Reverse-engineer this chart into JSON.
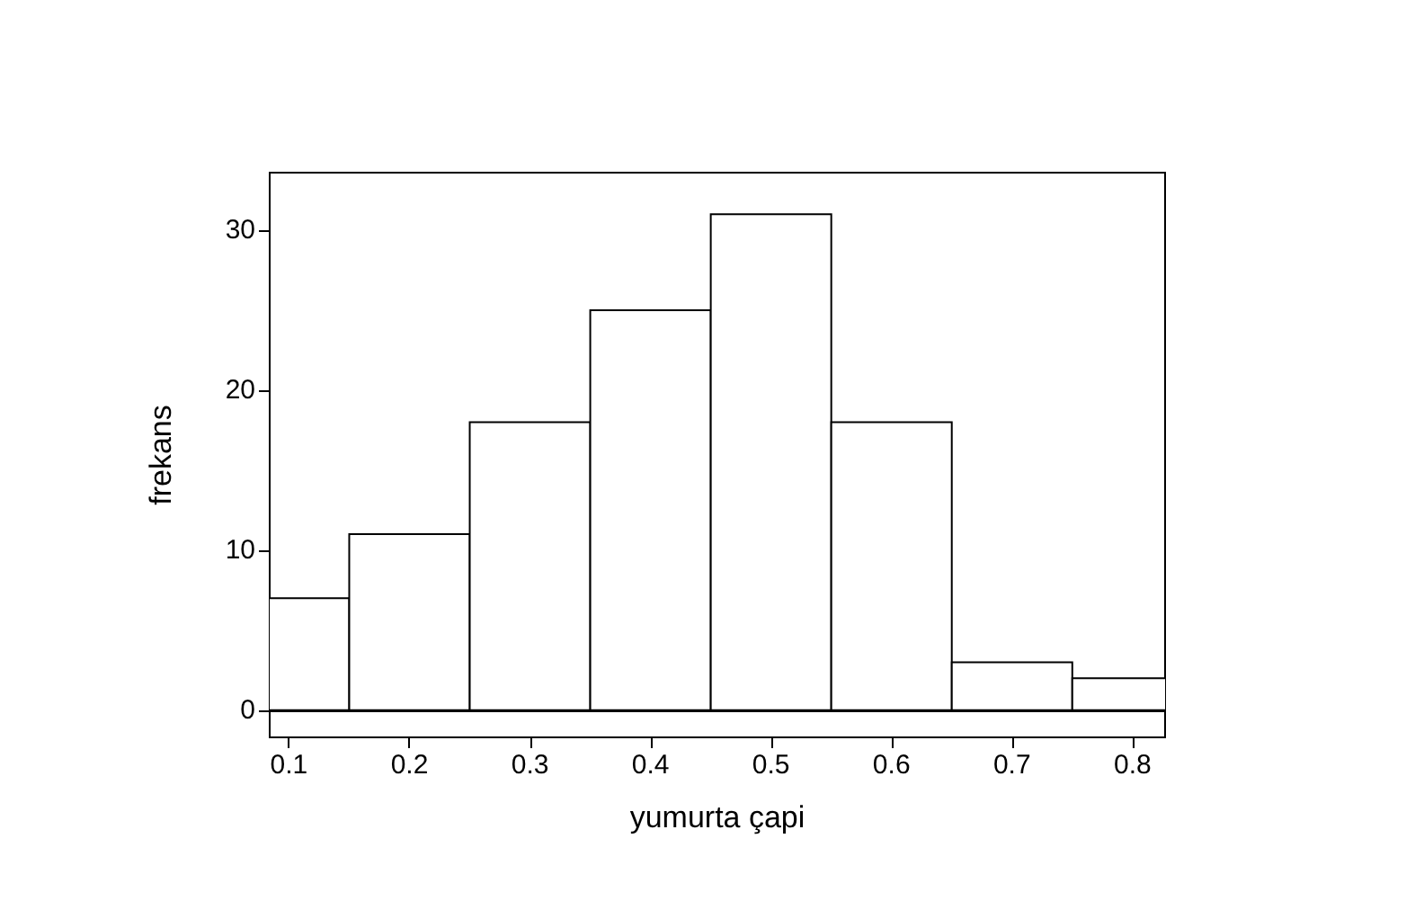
{
  "chart_data": {
    "type": "histogram",
    "xlabel": "yumurta çapi",
    "ylabel": "frekans",
    "bins": [
      0.05,
      0.15,
      0.25,
      0.35,
      0.45,
      0.55,
      0.65,
      0.75,
      0.85
    ],
    "values": [
      7,
      11,
      18,
      25,
      31,
      18,
      3,
      2
    ],
    "color": "#ffffff",
    "xlim": [
      0.084,
      0.827
    ],
    "ylim": [
      -1.7,
      33.6
    ],
    "xticks": [
      0.1,
      0.2,
      0.3,
      0.4,
      0.5,
      0.6,
      0.7,
      0.8
    ],
    "yticks": [
      0,
      10,
      20,
      30
    ],
    "tick_labels": true
  }
}
